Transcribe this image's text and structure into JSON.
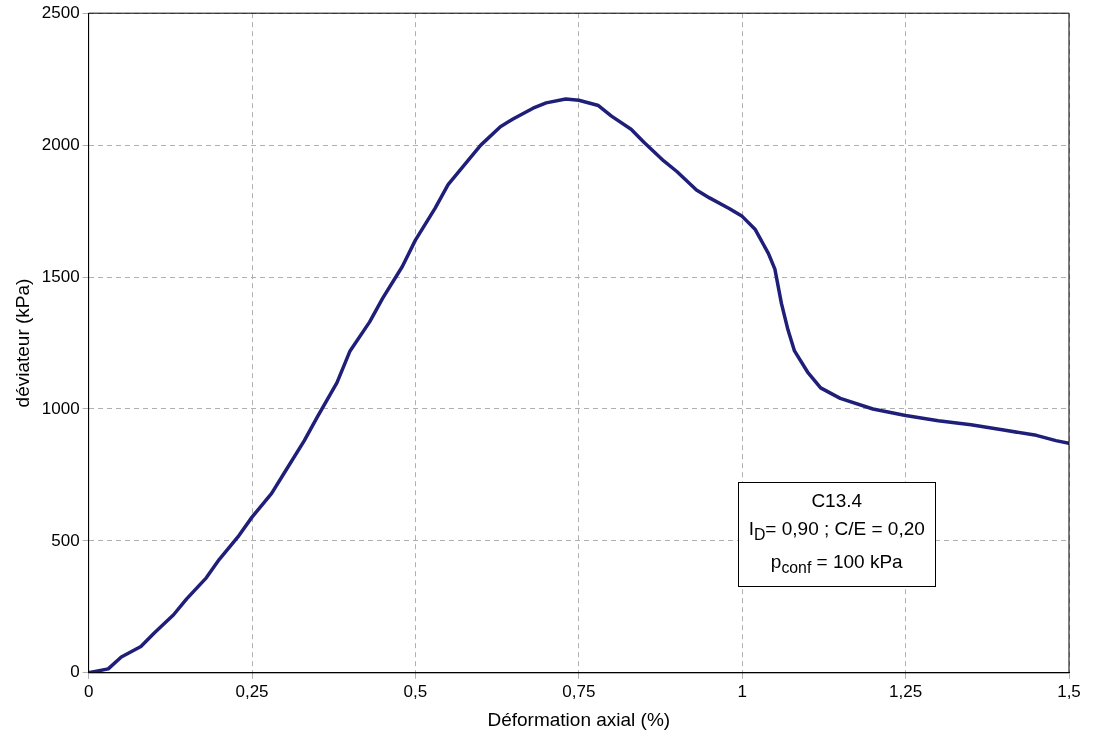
{
  "chart_data": {
    "type": "line",
    "xlabel": "Déformation axial (%)",
    "ylabel": "déviateur (kPa)",
    "annotations": [
      "C13.4",
      "I$_{D}$= 0,90 ; C/E = 0,20",
      "p$_{conf}$ = 100 kPa"
    ],
    "xlim": [
      0,
      1.5
    ],
    "xticks": [
      0,
      {
        "value": 0.25,
        "label": "0,25"
      },
      {
        "value": 0.5,
        "label": "0,5"
      },
      {
        "value": 0.75,
        "label": "0,75"
      },
      1,
      {
        "value": 1.25,
        "label": "1,25"
      },
      {
        "value": 1.5,
        "label": "1,5"
      }
    ],
    "ylim": [
      0,
      2500
    ],
    "yticks": [
      0,
      500,
      1000,
      1500,
      2000,
      2500
    ],
    "grid": true,
    "legend": false,
    "marker": "none",
    "line_style": "solid",
    "series": [
      {
        "color": "#1f1f7a",
        "x": [
          0,
          0.03,
          0.05,
          0.08,
          0.1,
          0.13,
          0.15,
          0.18,
          0.2,
          0.23,
          0.25,
          0.28,
          0.3,
          0.33,
          0.35,
          0.38,
          0.4,
          0.43,
          0.45,
          0.48,
          0.5,
          0.53,
          0.55,
          0.58,
          0.6,
          0.63,
          0.65,
          0.68,
          0.7,
          0.73,
          0.75,
          0.78,
          0.8,
          0.83,
          0.85,
          0.88,
          0.9,
          0.93,
          0.95,
          0.98,
          1.0,
          1.02,
          1.04,
          1.05,
          1.06,
          1.07,
          1.08,
          1.1,
          1.12,
          1.15,
          1.2,
          1.25,
          1.3,
          1.35,
          1.4,
          1.45,
          1.48,
          1.5
        ],
        "values": [
          0,
          15,
          60,
          100,
          150,
          220,
          280,
          360,
          430,
          520,
          590,
          680,
          760,
          880,
          970,
          1100,
          1220,
          1330,
          1420,
          1540,
          1640,
          1760,
          1850,
          1940,
          2000,
          2070,
          2100,
          2140,
          2160,
          2175,
          2170,
          2150,
          2110,
          2060,
          2010,
          1940,
          1900,
          1830,
          1800,
          1760,
          1730,
          1680,
          1590,
          1530,
          1400,
          1300,
          1220,
          1140,
          1080,
          1040,
          1000,
          975,
          955,
          940,
          920,
          900,
          880,
          870
        ]
      }
    ]
  }
}
